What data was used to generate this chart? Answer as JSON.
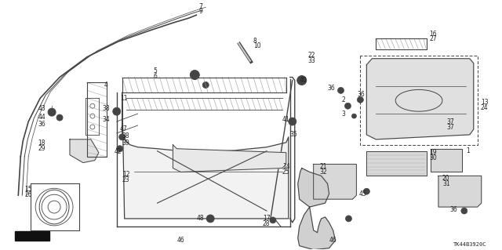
{
  "bg_color": "#ffffff",
  "fig_width": 6.4,
  "fig_height": 3.19,
  "dpi": 100,
  "diagram_code": "TK44B3920C",
  "line_color": "#444444",
  "text_color": "#222222",
  "font_size": 5.5,
  "window_arch_outer": [
    [
      0.045,
      0.05,
      0.06,
      0.085,
      0.13,
      0.185,
      0.24,
      0.29,
      0.33,
      0.355,
      0.37
    ],
    [
      0.68,
      0.73,
      0.79,
      0.855,
      0.91,
      0.95,
      0.975,
      0.985,
      0.975,
      0.95,
      0.92
    ]
  ],
  "window_arch_mid": [
    [
      0.05,
      0.062,
      0.073,
      0.095,
      0.14,
      0.193,
      0.247,
      0.296,
      0.334,
      0.358,
      0.372
    ],
    [
      0.68,
      0.725,
      0.782,
      0.845,
      0.9,
      0.94,
      0.965,
      0.975,
      0.963,
      0.938,
      0.908
    ]
  ],
  "window_arch_inner": [
    [
      0.055,
      0.067,
      0.078,
      0.1,
      0.145,
      0.198,
      0.252,
      0.3,
      0.337,
      0.36,
      0.374
    ],
    [
      0.68,
      0.72,
      0.774,
      0.836,
      0.891,
      0.931,
      0.956,
      0.966,
      0.952,
      0.926,
      0.896
    ]
  ]
}
